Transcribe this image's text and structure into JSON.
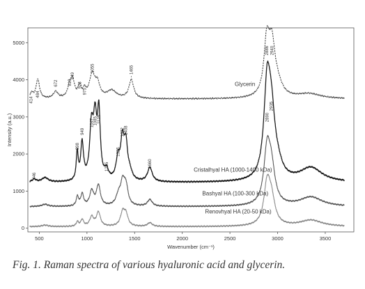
{
  "chart_data": {
    "type": "line",
    "xlabel": "Wavenumber (cm⁻¹)",
    "ylabel": "Intensity (a.u.)",
    "xlim": [
      380,
      3800
    ],
    "ylim": [
      -100,
      5400
    ],
    "x_ticks": [
      500,
      1000,
      1500,
      2000,
      2500,
      3000,
      3500
    ],
    "x_tick_labels": [
      "500",
      "1000",
      "1500",
      "2000",
      "2500",
      "3000",
      "3500"
    ],
    "y_ticks": [
      0,
      1000,
      2000,
      3000,
      4000,
      5000
    ],
    "y_tick_labels": [
      "0",
      "1000",
      "2000",
      "3000",
      "4000",
      "5000"
    ],
    "grid": false,
    "legend": "inline labels",
    "series": [
      {
        "name": "Glycerin",
        "color": "#444444",
        "style": "dashed",
        "label_at": [
          2550,
          3830
        ],
        "baseline": 3480,
        "peaks": [
          [
            420,
            150,
            18
          ],
          [
            484,
            520,
            22
          ],
          [
            672,
            180,
            30
          ],
          [
            818,
            280,
            25
          ],
          [
            849,
            450,
            25
          ],
          [
            923,
            300,
            20
          ],
          [
            975,
            190,
            18
          ],
          [
            1055,
            620,
            35
          ],
          [
            1110,
            350,
            30
          ],
          [
            1260,
            210,
            60
          ],
          [
            1465,
            500,
            30
          ],
          [
            2886,
            1400,
            35
          ],
          [
            2940,
            1300,
            40
          ],
          [
            3000,
            300,
            60
          ],
          [
            3330,
            130,
            150
          ]
        ],
        "peak_labels": [
          [
            414,
            3700
          ],
          [
            484,
            3850
          ],
          [
            672,
            4150
          ],
          [
            818,
            4170
          ],
          [
            849,
            4350
          ],
          [
            923,
            4100
          ],
          [
            975,
            3930
          ],
          [
            1055,
            4520
          ],
          [
            1465,
            4480
          ],
          [
            2886,
            5000
          ],
          [
            2940,
            5000
          ]
        ]
      },
      {
        "name": "Cristalhyal HA (1000-1400 kDa)",
        "color": "#1a1a1a",
        "style": "solid",
        "label_at": [
          2120,
          1520
        ],
        "baseline": 1230,
        "peaks": [
          [
            446,
            80,
            25
          ],
          [
            560,
            120,
            40
          ],
          [
            898,
            750,
            12
          ],
          [
            949,
            1000,
            18
          ],
          [
            1047,
            1350,
            22
          ],
          [
            1085,
            1500,
            22
          ],
          [
            1125,
            1700,
            18
          ],
          [
            1205,
            250,
            25
          ],
          [
            1326,
            550,
            25
          ],
          [
            1372,
            1000,
            22
          ],
          [
            1408,
            900,
            22
          ],
          [
            1450,
            200,
            30
          ],
          [
            1660,
            380,
            30
          ],
          [
            2890,
            2350,
            40
          ],
          [
            2935,
            1500,
            45
          ],
          [
            3000,
            300,
            60
          ],
          [
            3350,
            380,
            140
          ]
        ],
        "peak_labels": [
          [
            446,
            1650
          ],
          [
            898,
            2450
          ],
          [
            949,
            2850
          ],
          [
            1047,
            3050
          ],
          [
            1085,
            3100
          ],
          [
            1125,
            3150
          ],
          [
            1205,
            1870
          ],
          [
            1326,
            2270
          ],
          [
            1372,
            2800
          ],
          [
            1408,
            2850
          ],
          [
            1660,
            1950
          ],
          [
            2890,
            3200
          ],
          [
            2935,
            3500
          ]
        ]
      },
      {
        "name": "Bashyal HA (100-300 kDa)",
        "color": "#555555",
        "style": "solid",
        "label_at": [
          2210,
          890
        ],
        "baseline": 580,
        "peaks": [
          [
            560,
            60,
            40
          ],
          [
            900,
            250,
            15
          ],
          [
            950,
            320,
            18
          ],
          [
            1050,
            400,
            25
          ],
          [
            1120,
            550,
            25
          ],
          [
            1330,
            250,
            30
          ],
          [
            1375,
            600,
            28
          ],
          [
            1410,
            450,
            25
          ],
          [
            1660,
            180,
            30
          ],
          [
            2890,
            1400,
            40
          ],
          [
            2935,
            900,
            45
          ],
          [
            3350,
            250,
            140
          ]
        ],
        "peak_labels": []
      },
      {
        "name": "Renovhyal HA (20-50 kDa)",
        "color": "#888888",
        "style": "solid",
        "label_at": [
          2240,
          400
        ],
        "baseline": 40,
        "peaks": [
          [
            560,
            40,
            40
          ],
          [
            900,
            120,
            15
          ],
          [
            950,
            180,
            18
          ],
          [
            1050,
            250,
            25
          ],
          [
            1120,
            380,
            25
          ],
          [
            1375,
            380,
            28
          ],
          [
            1410,
            280,
            25
          ],
          [
            1660,
            100,
            30
          ],
          [
            2890,
            1050,
            40
          ],
          [
            2935,
            650,
            45
          ],
          [
            3350,
            170,
            140
          ]
        ],
        "peak_labels": []
      }
    ]
  },
  "caption": "Fig. 1.  Raman spectra of various hyaluronic acid and glycerin."
}
